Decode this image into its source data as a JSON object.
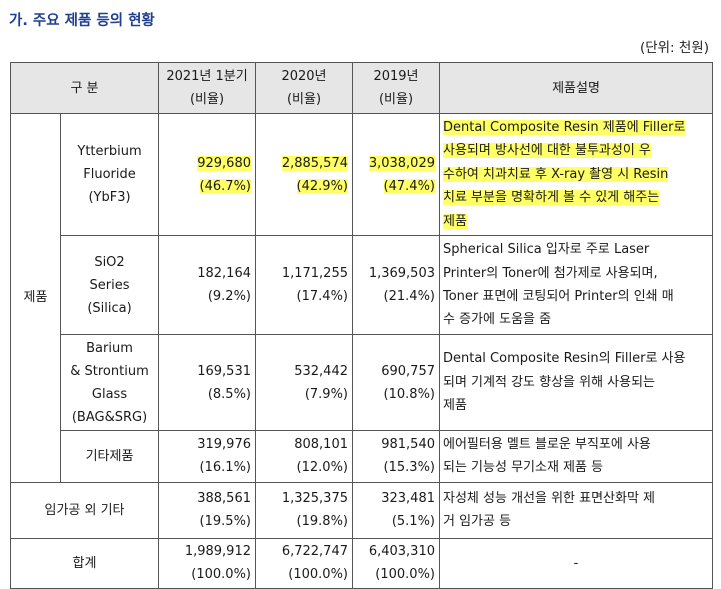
{
  "heading": "가. 주요 제품 등의 현황",
  "unit": "(단위: 천원)",
  "table": {
    "headers": {
      "category": "구 분",
      "col1": [
        "2021년 1분기",
        "(비율)"
      ],
      "col2": [
        "2020년",
        "(비율)"
      ],
      "col3": [
        "2019년",
        "(비율)"
      ],
      "desc": "제품설명"
    },
    "group_label": "제품",
    "rows": [
      {
        "name": [
          "Ytterbium",
          "Fluoride",
          "(YbF3)"
        ],
        "v1": "929,680",
        "p1": "(46.7%)",
        "v2": "2,885,574",
        "p2": "(42.9%)",
        "v3": "3,038,029",
        "p3": "(47.4%)",
        "desc": [
          "Dental Composite Resin 제품에 Filler로",
          "사용되며 방사선에 대한 불투과성이 우",
          "수하여 치과치료 후 X-ray 촬영 시 Resin",
          "치료 부분을 명확하게 볼 수 있게 해주는",
          "제품"
        ]
      },
      {
        "name": [
          "SiO2",
          "Series",
          "(Silica)"
        ],
        "v1": "182,164",
        "p1": "(9.2%)",
        "v2": "1,171,255",
        "p2": "(17.4%)",
        "v3": "1,369,503",
        "p3": "(21.4%)",
        "desc": [
          "Spherical Silica 입자로 주로 Laser",
          "Printer의 Toner에 첨가제로 사용되며,",
          "Toner 표면에 코팅되어 Printer의 인쇄 매",
          "수 증가에 도움을 줌"
        ]
      },
      {
        "name": [
          "Barium",
          "& Strontium",
          "Glass",
          "(BAG&SRG)"
        ],
        "v1": "169,531",
        "p1": "(8.5%)",
        "v2": "532,442",
        "p2": "(7.9%)",
        "v3": "690,757",
        "p3": "(10.8%)",
        "desc": [
          "Dental Composite Resin의 Filler로 사용",
          "되며 기계적 강도 향상을 위해 사용되는",
          "제품"
        ]
      },
      {
        "name": [
          "기타제품"
        ],
        "v1": "319,976",
        "p1": "(16.1%)",
        "v2": "808,101",
        "p2": "(12.0%)",
        "v3": "981,540",
        "p3": "(15.3%)",
        "desc": [
          "에어필터용 멜트 블로운 부직포에 사용",
          "되는 기능성 무기소재 제품 등"
        ]
      }
    ],
    "other": {
      "name": "임가공 외 기타",
      "v1": "388,561",
      "p1": "(19.5%)",
      "v2": "1,325,375",
      "p2": "(19.8%)",
      "v3": "323,481",
      "p3": "(5.1%)",
      "desc": [
        "자성체 성능 개선을 위한 표면산화막 제",
        "거 임가공 등"
      ]
    },
    "total": {
      "name": "합계",
      "v1": "1,989,912",
      "p1": "(100.0%)",
      "v2": "6,722,747",
      "p2": "(100.0%)",
      "v3": "6,403,310",
      "p3": "(100.0%)",
      "desc": "-"
    }
  }
}
